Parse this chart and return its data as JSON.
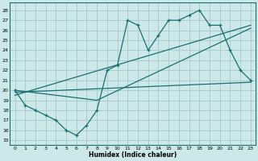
{
  "xlabel": "Humidex (Indice chaleur)",
  "background_color": "#cce8e8",
  "grid_color": "#aacccc",
  "line_color": "#1a7070",
  "xlim": [
    -0.5,
    23.5
  ],
  "ylim": [
    14.5,
    28.8
  ],
  "yticks": [
    15,
    16,
    17,
    18,
    19,
    20,
    21,
    22,
    23,
    24,
    25,
    26,
    27,
    28
  ],
  "xticks": [
    0,
    1,
    2,
    3,
    4,
    5,
    6,
    7,
    8,
    9,
    10,
    11,
    12,
    13,
    14,
    15,
    16,
    17,
    18,
    19,
    20,
    21,
    22,
    23
  ],
  "main_x": [
    0,
    1,
    2,
    3,
    4,
    5,
    6,
    7,
    8,
    9,
    10,
    11,
    12,
    13,
    14,
    15,
    16,
    17,
    18,
    19,
    20,
    21,
    22,
    23
  ],
  "main_y": [
    20,
    18.5,
    18,
    17.5,
    17,
    16,
    15.5,
    16.5,
    18,
    22,
    22.5,
    27,
    26.5,
    24,
    25.5,
    27,
    27,
    27.5,
    28,
    26.5,
    26.5,
    24,
    22,
    21
  ],
  "flat_line_x": [
    0,
    23
  ],
  "flat_line_y": [
    19.8,
    20.8
  ],
  "steep_line_x": [
    0,
    23
  ],
  "steep_line_y": [
    19.5,
    26.5
  ],
  "mid_line_x": [
    0,
    8,
    23
  ],
  "mid_line_y": [
    20.0,
    19.0,
    26.2
  ]
}
